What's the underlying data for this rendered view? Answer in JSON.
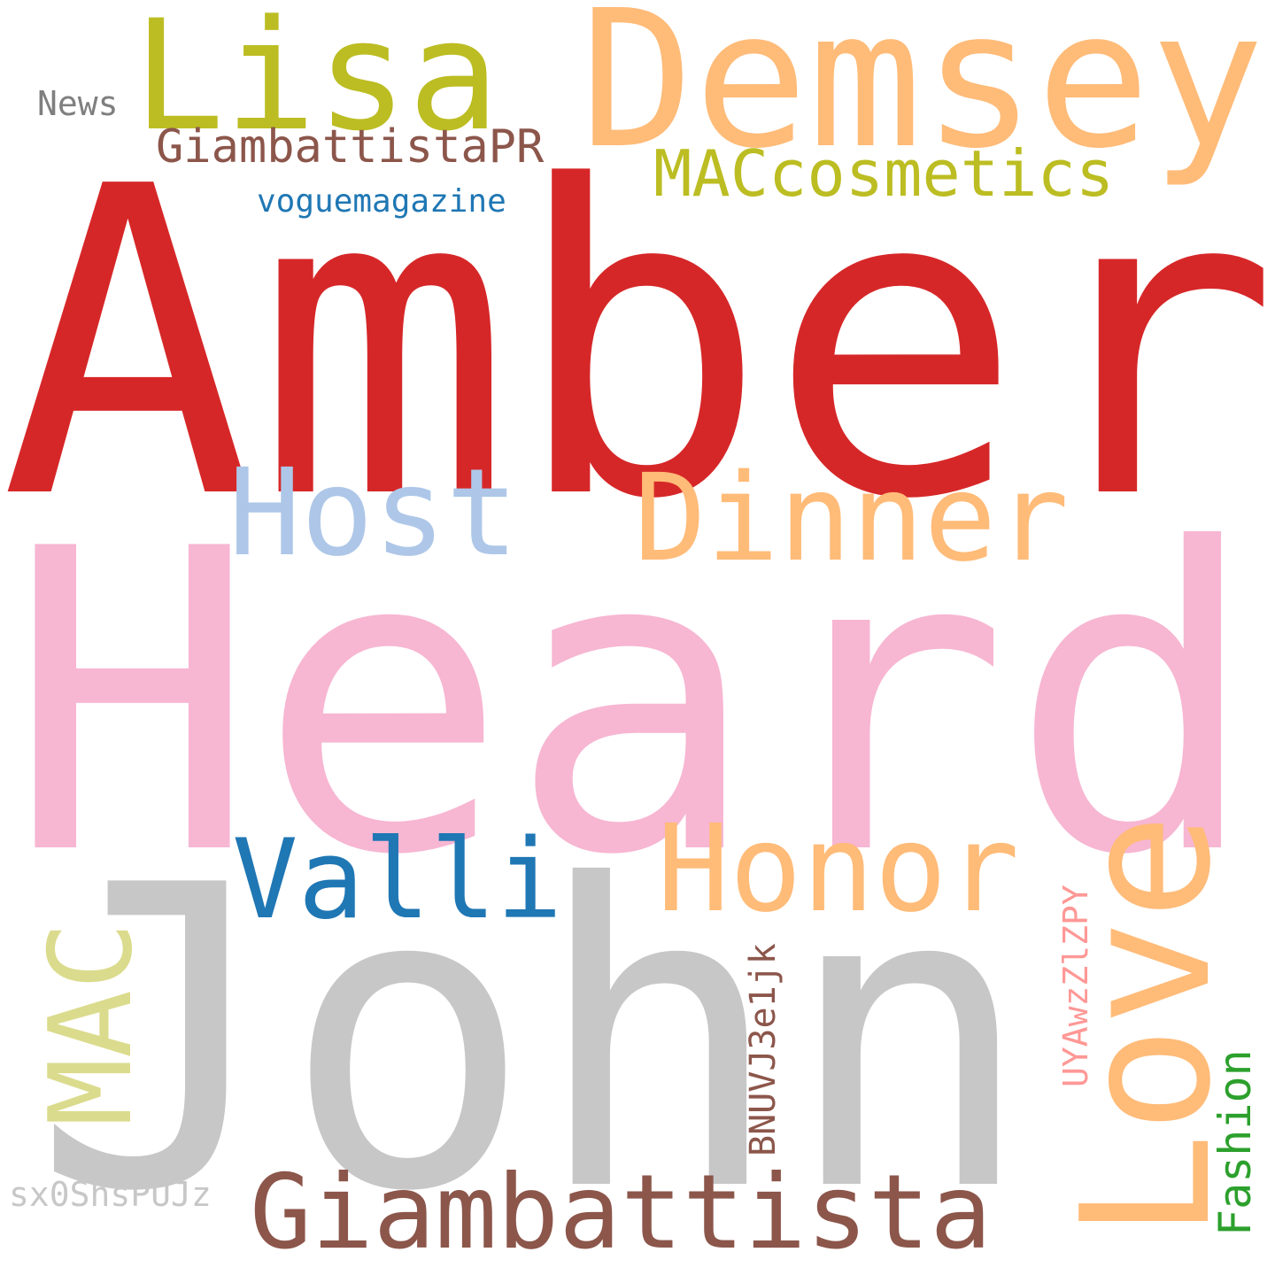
{
  "words": [
    {
      "text": "Amber",
      "color": "#d62728"
    },
    {
      "text": "Heard",
      "color": "#f7b6d2"
    },
    {
      "text": "John",
      "color": "#c7c7c7"
    },
    {
      "text": "Lisa",
      "color": "#bcbd22"
    },
    {
      "text": "Demsey",
      "color": "#ffbb78"
    },
    {
      "text": "Host",
      "color": "#aec7e8"
    },
    {
      "text": "Dinner",
      "color": "#ffbb78"
    },
    {
      "text": "Love",
      "color": "#ffbb78"
    },
    {
      "text": "Honor",
      "color": "#ffbb78"
    },
    {
      "text": "Valli",
      "color": "#1f77b4"
    },
    {
      "text": "Giambattista",
      "color": "#8c564b"
    },
    {
      "text": "MAC",
      "color": "#dbdb8d"
    },
    {
      "text": "MACcosmetics",
      "color": "#bcbd22"
    },
    {
      "text": "GiambattistaPR",
      "color": "#8c564b"
    },
    {
      "text": "voguemagazine",
      "color": "#1f77b4"
    },
    {
      "text": "News",
      "color": "#7f7f7f"
    },
    {
      "text": "BNUVJ3e1jk",
      "color": "#8c564b"
    },
    {
      "text": "UYAwzZlZPY",
      "color": "#ff9896"
    },
    {
      "text": "Fashion",
      "color": "#2ca02c"
    },
    {
      "text": "sx0ShsPUJz",
      "color": "#c7c7c7"
    }
  ]
}
